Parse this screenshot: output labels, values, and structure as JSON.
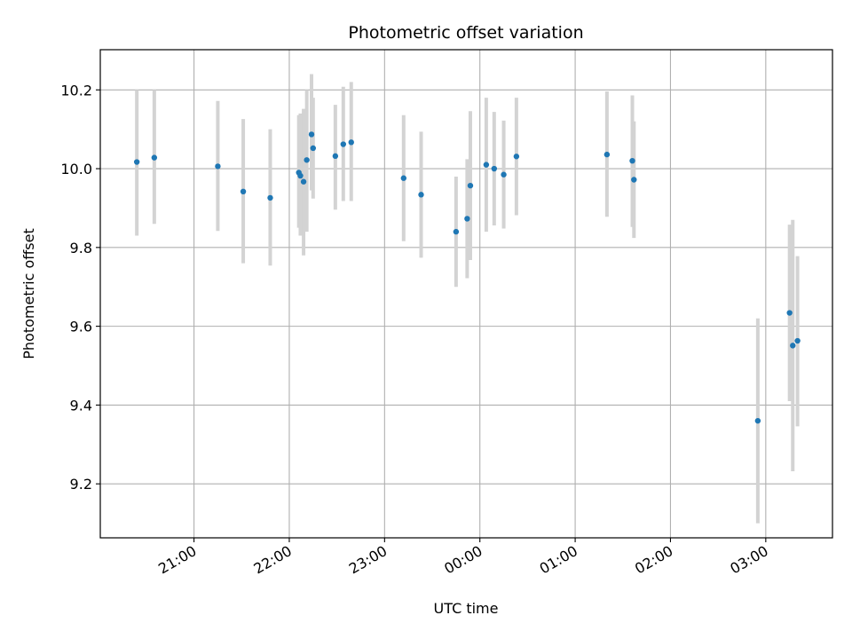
{
  "chart_data": {
    "type": "scatter",
    "title": "Photometric offset variation",
    "xlabel": "UTC time",
    "ylabel": "Photometric offset",
    "grid": true,
    "x_tick_labels": [
      "21:00",
      "22:00",
      "23:00",
      "00:00",
      "01:00",
      "02:00",
      "03:00"
    ],
    "x_tick_dates": [
      "2000-01-01T21:00",
      "2000-01-01T22:00",
      "2000-01-01T23:00",
      "2000-01-02T00:00",
      "2000-01-02T01:00",
      "2000-01-02T02:00",
      "2000-01-02T03:00"
    ],
    "xlim": [
      "2000-01-01T20:01",
      "2000-01-02T03:42"
    ],
    "y_ticks": [
      "9.2",
      "9.4",
      "9.6",
      "9.8",
      "10.0",
      "10.2"
    ],
    "ylim": [
      9.063,
      10.302
    ],
    "colors": {
      "marker": "#1f77b4",
      "errorbar": "#d3d3d3",
      "grid": "#b0b0b0"
    },
    "points": [
      {
        "x": "2000-01-01T20:24",
        "y": 10.017,
        "lo": 9.83,
        "hi": 10.2
      },
      {
        "x": "2000-01-01T20:35",
        "y": 10.028,
        "lo": 9.86,
        "hi": 10.2
      },
      {
        "x": "2000-01-01T21:15",
        "y": 10.006,
        "lo": 9.842,
        "hi": 10.172
      },
      {
        "x": "2000-01-01T21:31",
        "y": 9.942,
        "lo": 9.76,
        "hi": 10.126
      },
      {
        "x": "2000-01-01T21:48",
        "y": 9.926,
        "lo": 9.754,
        "hi": 10.1
      },
      {
        "x": "2000-01-01T22:06",
        "y": 9.99,
        "lo": 9.85,
        "hi": 10.136
      },
      {
        "x": "2000-01-01T22:07",
        "y": 9.982,
        "lo": 9.83,
        "hi": 10.14
      },
      {
        "x": "2000-01-01T22:09",
        "y": 9.967,
        "lo": 9.78,
        "hi": 10.152
      },
      {
        "x": "2000-01-01T22:11",
        "y": 10.022,
        "lo": 9.84,
        "hi": 10.2
      },
      {
        "x": "2000-01-01T22:14",
        "y": 10.087,
        "lo": 9.945,
        "hi": 10.24
      },
      {
        "x": "2000-01-01T22:15",
        "y": 10.052,
        "lo": 9.924,
        "hi": 10.18
      },
      {
        "x": "2000-01-01T22:29",
        "y": 10.032,
        "lo": 9.896,
        "hi": 10.162
      },
      {
        "x": "2000-01-01T22:34",
        "y": 10.062,
        "lo": 9.918,
        "hi": 10.208
      },
      {
        "x": "2000-01-01T22:39",
        "y": 10.067,
        "lo": 9.918,
        "hi": 10.22
      },
      {
        "x": "2000-01-01T23:12",
        "y": 9.976,
        "lo": 9.816,
        "hi": 10.136
      },
      {
        "x": "2000-01-01T23:23",
        "y": 9.934,
        "lo": 9.774,
        "hi": 10.094
      },
      {
        "x": "2000-01-01T23:45",
        "y": 9.84,
        "lo": 9.7,
        "hi": 9.98
      },
      {
        "x": "2000-01-01T23:52",
        "y": 9.873,
        "lo": 9.722,
        "hi": 10.024
      },
      {
        "x": "2000-01-01T23:54",
        "y": 9.957,
        "lo": 9.768,
        "hi": 10.146
      },
      {
        "x": "2000-01-02T00:04",
        "y": 10.01,
        "lo": 9.84,
        "hi": 10.18
      },
      {
        "x": "2000-01-02T00:09",
        "y": 10.0,
        "lo": 9.856,
        "hi": 10.144
      },
      {
        "x": "2000-01-02T00:15",
        "y": 9.985,
        "lo": 9.848,
        "hi": 10.122
      },
      {
        "x": "2000-01-02T00:23",
        "y": 10.031,
        "lo": 9.882,
        "hi": 10.18
      },
      {
        "x": "2000-01-02T01:20",
        "y": 10.036,
        "lo": 9.878,
        "hi": 10.196
      },
      {
        "x": "2000-01-02T01:36",
        "y": 10.02,
        "lo": 9.852,
        "hi": 10.186
      },
      {
        "x": "2000-01-02T01:37",
        "y": 9.972,
        "lo": 9.824,
        "hi": 10.12
      },
      {
        "x": "2000-01-02T02:55",
        "y": 9.36,
        "lo": 9.1,
        "hi": 9.62
      },
      {
        "x": "2000-01-02T03:15",
        "y": 9.634,
        "lo": 9.41,
        "hi": 9.858
      },
      {
        "x": "2000-01-02T03:17",
        "y": 9.551,
        "lo": 9.232,
        "hi": 9.87
      },
      {
        "x": "2000-01-02T03:20",
        "y": 9.563,
        "lo": 9.346,
        "hi": 9.778
      }
    ]
  }
}
